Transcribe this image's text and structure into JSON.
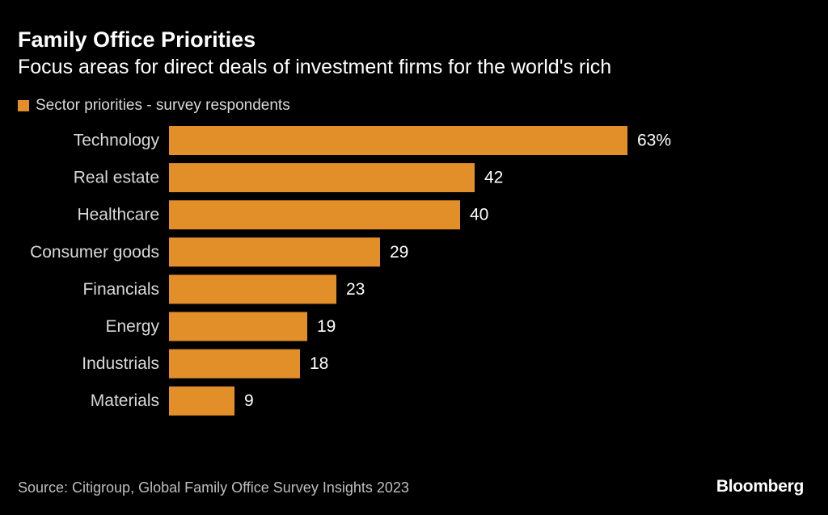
{
  "header": {
    "title": "Family Office Priorities",
    "subtitle": "Focus areas for direct deals of investment firms for the world's rich"
  },
  "legend": {
    "label": "Sector priorities - survey respondents"
  },
  "colors": {
    "bar": "#E28F29",
    "text": "#FFFFFF",
    "label": "#D9D9D9",
    "background": "#000000"
  },
  "chart_data": {
    "type": "bar",
    "orientation": "horizontal",
    "title": "Family Office Priorities",
    "subtitle": "Focus areas for direct deals of investment firms for the world's rich",
    "xlabel": "",
    "ylabel": "",
    "grid": false,
    "legend_position": "top-left",
    "xlim": [
      0,
      63
    ],
    "categories": [
      "Technology",
      "Real estate",
      "Healthcare",
      "Consumer goods",
      "Financials",
      "Energy",
      "Industrials",
      "Materials"
    ],
    "series": [
      {
        "name": "Sector priorities - survey respondents",
        "values": [
          63,
          42,
          40,
          29,
          23,
          19,
          18,
          9
        ]
      }
    ],
    "value_labels": [
      "63%",
      "42",
      "40",
      "29",
      "23",
      "19",
      "18",
      "9"
    ]
  },
  "footer": {
    "source": "Source: Citigroup, Global Family Office Survey Insights 2023",
    "brand": "Bloomberg"
  }
}
